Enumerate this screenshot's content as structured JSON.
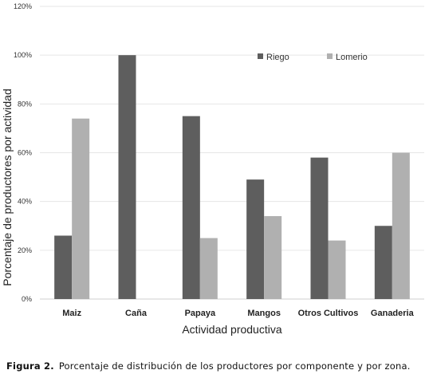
{
  "chart_data": {
    "type": "bar",
    "categories": [
      "Maiz",
      "Caña",
      "Papaya",
      "Mangos",
      "Otros Cultivos",
      "Ganaderia"
    ],
    "series": [
      {
        "name": "Riego",
        "color": "#5e5e5e",
        "values": [
          26,
          100,
          75,
          49,
          58,
          30
        ]
      },
      {
        "name": "Lomerio",
        "color": "#b0b0b0",
        "values": [
          74,
          0,
          25,
          34,
          24,
          60
        ]
      }
    ],
    "yticks": [
      "0%",
      "20%",
      "40%",
      "60%",
      "80%",
      "100%",
      "120%"
    ],
    "ylim": [
      0,
      120
    ],
    "xlabel": "Actividad productiva",
    "ylabel": "Porcentaje de productores por actividad",
    "grid": true,
    "legend_position": "top-right"
  },
  "caption": {
    "label": "Figura 2.",
    "text": "Porcentaje de distribución de los productores por componente y por zona."
  }
}
